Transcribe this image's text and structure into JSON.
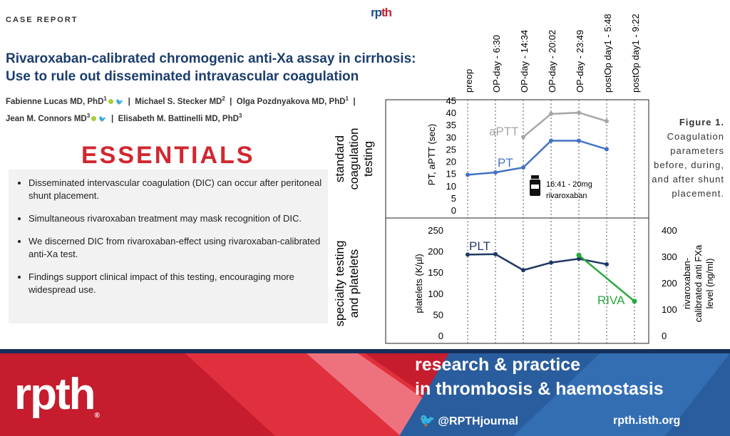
{
  "header": {
    "case_report": "CASE REPORT",
    "logo_text": "rpth",
    "logo_tagline": "research & practice in thrombosis & haemostasis"
  },
  "article": {
    "title_line1": "Rivaroxaban-calibrated chromogenic anti-Xa assay in cirrhosis:",
    "title_line2": "Use to rule out disseminated intravascular coagulation",
    "authors": [
      {
        "name": "Fabienne Lucas MD, PhD",
        "sup": "1"
      },
      {
        "name": "Michael S. Stecker MD",
        "sup": "2"
      },
      {
        "name": "Olga Pozdnyakova MD, PhD",
        "sup": "1"
      },
      {
        "name": "Jean M. Connors MD",
        "sup": "3"
      },
      {
        "name": "Elisabeth M. Battinelli MD, PhD",
        "sup": "3"
      }
    ]
  },
  "essentials": {
    "heading": "ESSENTIALS",
    "items": [
      "Disseminated intervascular coagulation (DIC) can occur after peritoneal shunt placement.",
      "Simultaneous rivaroxaban treatment may mask recognition of DIC.",
      "We discerned DIC from rivaroxaban-effect using rivaroxaban-calibrated anti-Xa test.",
      "Findings support clinical impact of this testing, encouraging more widespread use."
    ]
  },
  "figure": {
    "caption_title": "Figure 1.",
    "caption_text": "Coagulation parameters before, during, and after shunt placement."
  },
  "chart_data": [
    {
      "type": "line",
      "x": [
        "preop",
        "OP-day - 6:30",
        "OP-day - 14:34",
        "OP-day - 20:02",
        "OP-day - 23:49",
        "postOp day1 - 5:48",
        "postOp day1 - 9:22"
      ],
      "row_label_1": "standard",
      "row_label_2": "coagulation",
      "row_label_3": "testing",
      "ylabel": "PT, aPTT (sec)",
      "ylim": [
        0,
        45
      ],
      "yticks": [
        "0",
        "5",
        "10",
        "15",
        "20",
        "25",
        "30",
        "35",
        "40",
        "45"
      ],
      "series": [
        {
          "name": "aPTT",
          "color": "#a6a6a6",
          "values": [
            null,
            null,
            30,
            39.5,
            40,
            36.5,
            null
          ]
        },
        {
          "name": "PT",
          "color": "#4472c4",
          "values": [
            14.5,
            15.5,
            17.5,
            28.5,
            28.5,
            25,
            null
          ]
        }
      ],
      "annotation": {
        "time": "16:41 - 20mg",
        "drug": "rivaroxaban",
        "icon": "pill-bottle-icon"
      }
    },
    {
      "type": "line",
      "x": [
        "preop",
        "OP-day - 6:30",
        "OP-day - 14:34",
        "OP-day - 20:02",
        "OP-day - 23:49",
        "postOp day1 - 5:48",
        "postOp day1 - 9:22"
      ],
      "row_label_1": "specialty testing",
      "row_label_2": "and platelets",
      "ylabel": "platelets (K/µl)",
      "ylim": [
        0,
        250
      ],
      "yticks": [
        "0",
        "50",
        "100",
        "150",
        "200",
        "250"
      ],
      "y2label_1": "rivaroxaban-",
      "y2label_2": "calibrated anti FXa",
      "y2label_3": "level (ng/ml)",
      "y2lim": [
        0,
        400
      ],
      "y2ticks": [
        "0",
        "100",
        "200",
        "300",
        "400"
      ],
      "series": [
        {
          "name": "PLT",
          "color": "#203864",
          "axis": "left",
          "values": [
            192,
            193,
            155,
            173,
            182,
            169,
            null
          ]
        },
        {
          "name": "RIVA",
          "color": "#2aaa3c",
          "axis": "right",
          "values": [
            null,
            null,
            null,
            null,
            305,
            null,
            130
          ]
        }
      ]
    }
  ],
  "footer": {
    "logo": "rpth",
    "line1": "research & practice",
    "line2": "in thrombosis & haemostasis",
    "twitter": "@RPTHjournal",
    "site": "rpth.isth.org"
  },
  "colors": {
    "title_blue": "#1c3e6e",
    "essentials_red": "#d22730",
    "footer_red": "#c51c2e",
    "footer_blue": "#1e3d6a"
  }
}
